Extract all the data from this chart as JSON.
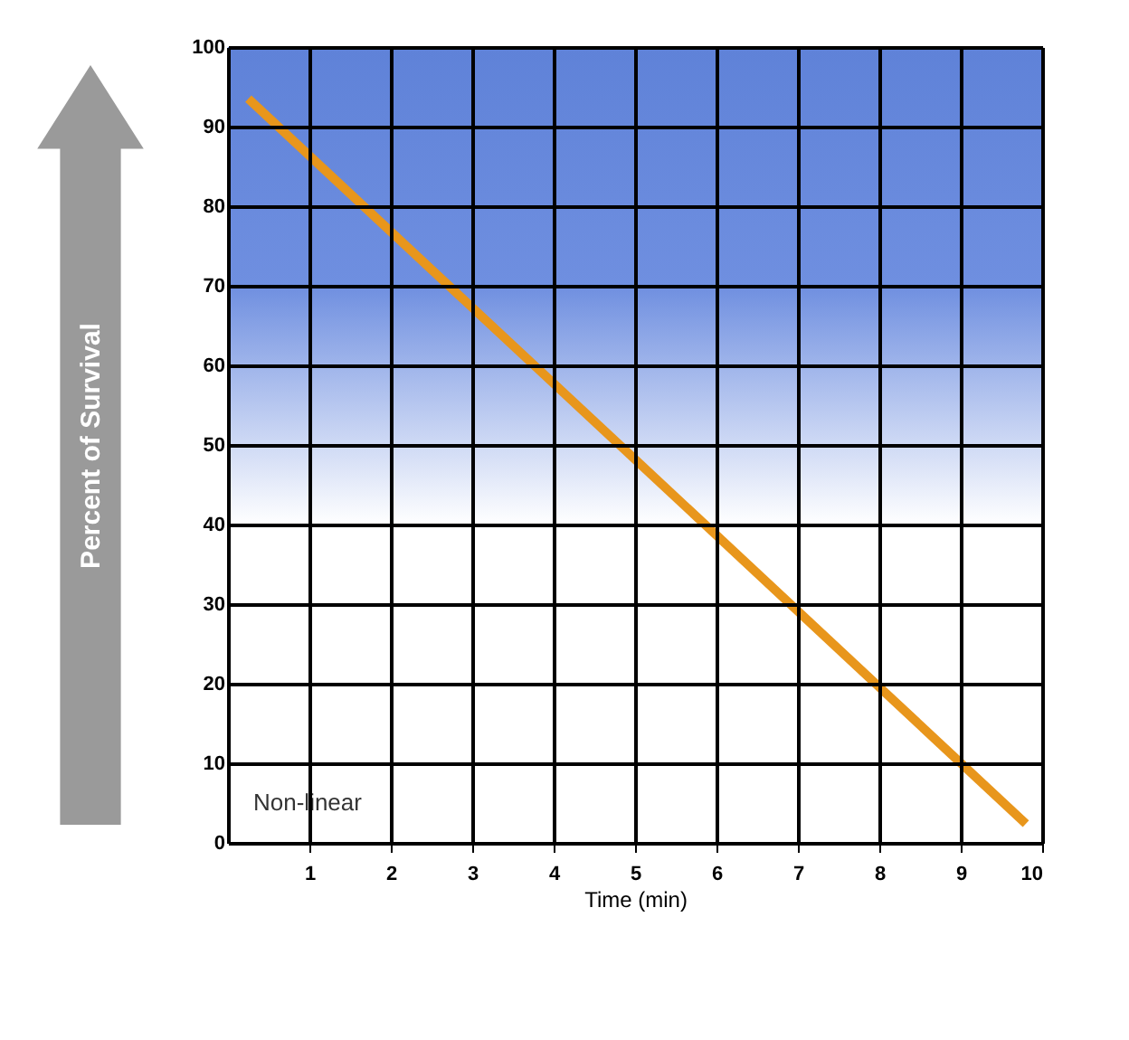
{
  "chart_data": {
    "type": "line",
    "xlabel": "Time (min)",
    "ylabel": "Percent of Survival",
    "x": [
      0.25,
      9.8
    ],
    "series": [
      {
        "color": "#e8961c",
        "values": [
          93.5,
          2.4
        ]
      }
    ],
    "xlim": [
      0,
      10
    ],
    "xticks": [
      1,
      2,
      3,
      4,
      5,
      6,
      7,
      8,
      9,
      10
    ],
    "ylim": [
      0,
      100
    ],
    "yticks": [
      0,
      10,
      20,
      30,
      40,
      50,
      60,
      70,
      80,
      90,
      100
    ],
    "grid": true,
    "line_style": "solid",
    "annotations": [
      "Non-linear"
    ]
  }
}
